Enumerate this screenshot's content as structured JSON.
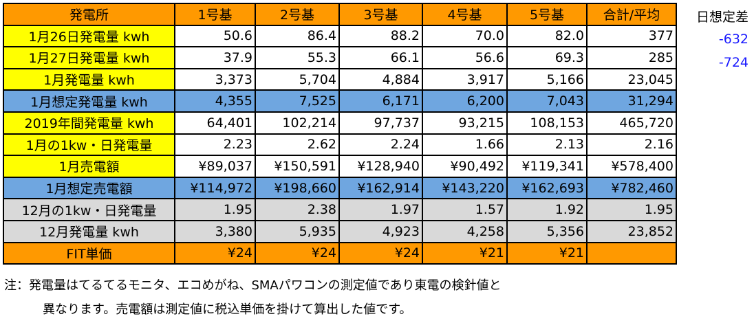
{
  "colors": {
    "orange": "#ff9900",
    "yellow": "#ffff00",
    "blue": "#6fa6e0",
    "gray": "#d9d9d9",
    "white": "#ffffff",
    "diff_text": "#1a1aff"
  },
  "header": [
    "発電所",
    "1号基",
    "2号基",
    "3号基",
    "4号基",
    "5号基",
    "合計/平均"
  ],
  "rows": [
    {
      "label": "1月26日発電量 kwh",
      "label_bg": "yellow",
      "data_bg": "white",
      "values": [
        "50.6",
        "86.4",
        "88.2",
        "70.0",
        "82.0",
        "377"
      ]
    },
    {
      "label": "1月27日発電量 kwh",
      "label_bg": "yellow",
      "data_bg": "white",
      "values": [
        "37.9",
        "55.3",
        "66.1",
        "56.6",
        "69.3",
        "285"
      ]
    },
    {
      "label": "1月発電量 kwh",
      "label_bg": "yellow",
      "data_bg": "white",
      "values": [
        "3,373",
        "5,704",
        "4,884",
        "3,917",
        "5,166",
        "23,045"
      ]
    },
    {
      "label": "1月想定発電量 kwh",
      "label_bg": "blue",
      "data_bg": "blue",
      "values": [
        "4,355",
        "7,525",
        "6,171",
        "6,200",
        "7,043",
        "31,294"
      ]
    },
    {
      "label": "2019年間発電量 kwh",
      "label_bg": "yellow",
      "data_bg": "white",
      "values": [
        "64,401",
        "102,214",
        "97,737",
        "93,215",
        "108,153",
        "465,720"
      ]
    },
    {
      "label": "1月の1kw・日発電量",
      "label_bg": "yellow",
      "data_bg": "white",
      "values": [
        "2.23",
        "2.62",
        "2.24",
        "1.66",
        "2.13",
        "2.16"
      ]
    },
    {
      "label": "1月売電額",
      "label_bg": "yellow",
      "data_bg": "white",
      "values": [
        "¥89,037",
        "¥150,591",
        "¥128,940",
        "¥90,492",
        "¥119,341",
        "¥578,400"
      ]
    },
    {
      "label": "1月想定売電額",
      "label_bg": "blue",
      "data_bg": "blue",
      "values": [
        "¥114,972",
        "¥198,660",
        "¥162,914",
        "¥143,220",
        "¥162,693",
        "¥782,460"
      ]
    },
    {
      "label": "12月の1kw・日発電量",
      "label_bg": "gray",
      "data_bg": "gray",
      "values": [
        "1.95",
        "2.38",
        "1.97",
        "1.57",
        "1.92",
        "1.95"
      ]
    },
    {
      "label": "12月発電量 kwh",
      "label_bg": "gray",
      "data_bg": "gray",
      "values": [
        "3,380",
        "5,935",
        "4,923",
        "4,258",
        "5,356",
        "23,852"
      ]
    },
    {
      "label": "FIT単価",
      "label_bg": "orange",
      "data_bg": "orange",
      "values": [
        "¥24",
        "¥24",
        "¥24",
        "¥21",
        "¥21",
        ""
      ]
    }
  ],
  "side": {
    "title": "日想定差",
    "values": [
      "-632",
      "-724"
    ]
  },
  "notes": [
    "注：発電量はてるてるモニタ、エコめがね、SMAパワコンの測定値であり東電の検針値と",
    "異なります。売電額は測定値に税込単価を掛けて算出した値です。"
  ]
}
